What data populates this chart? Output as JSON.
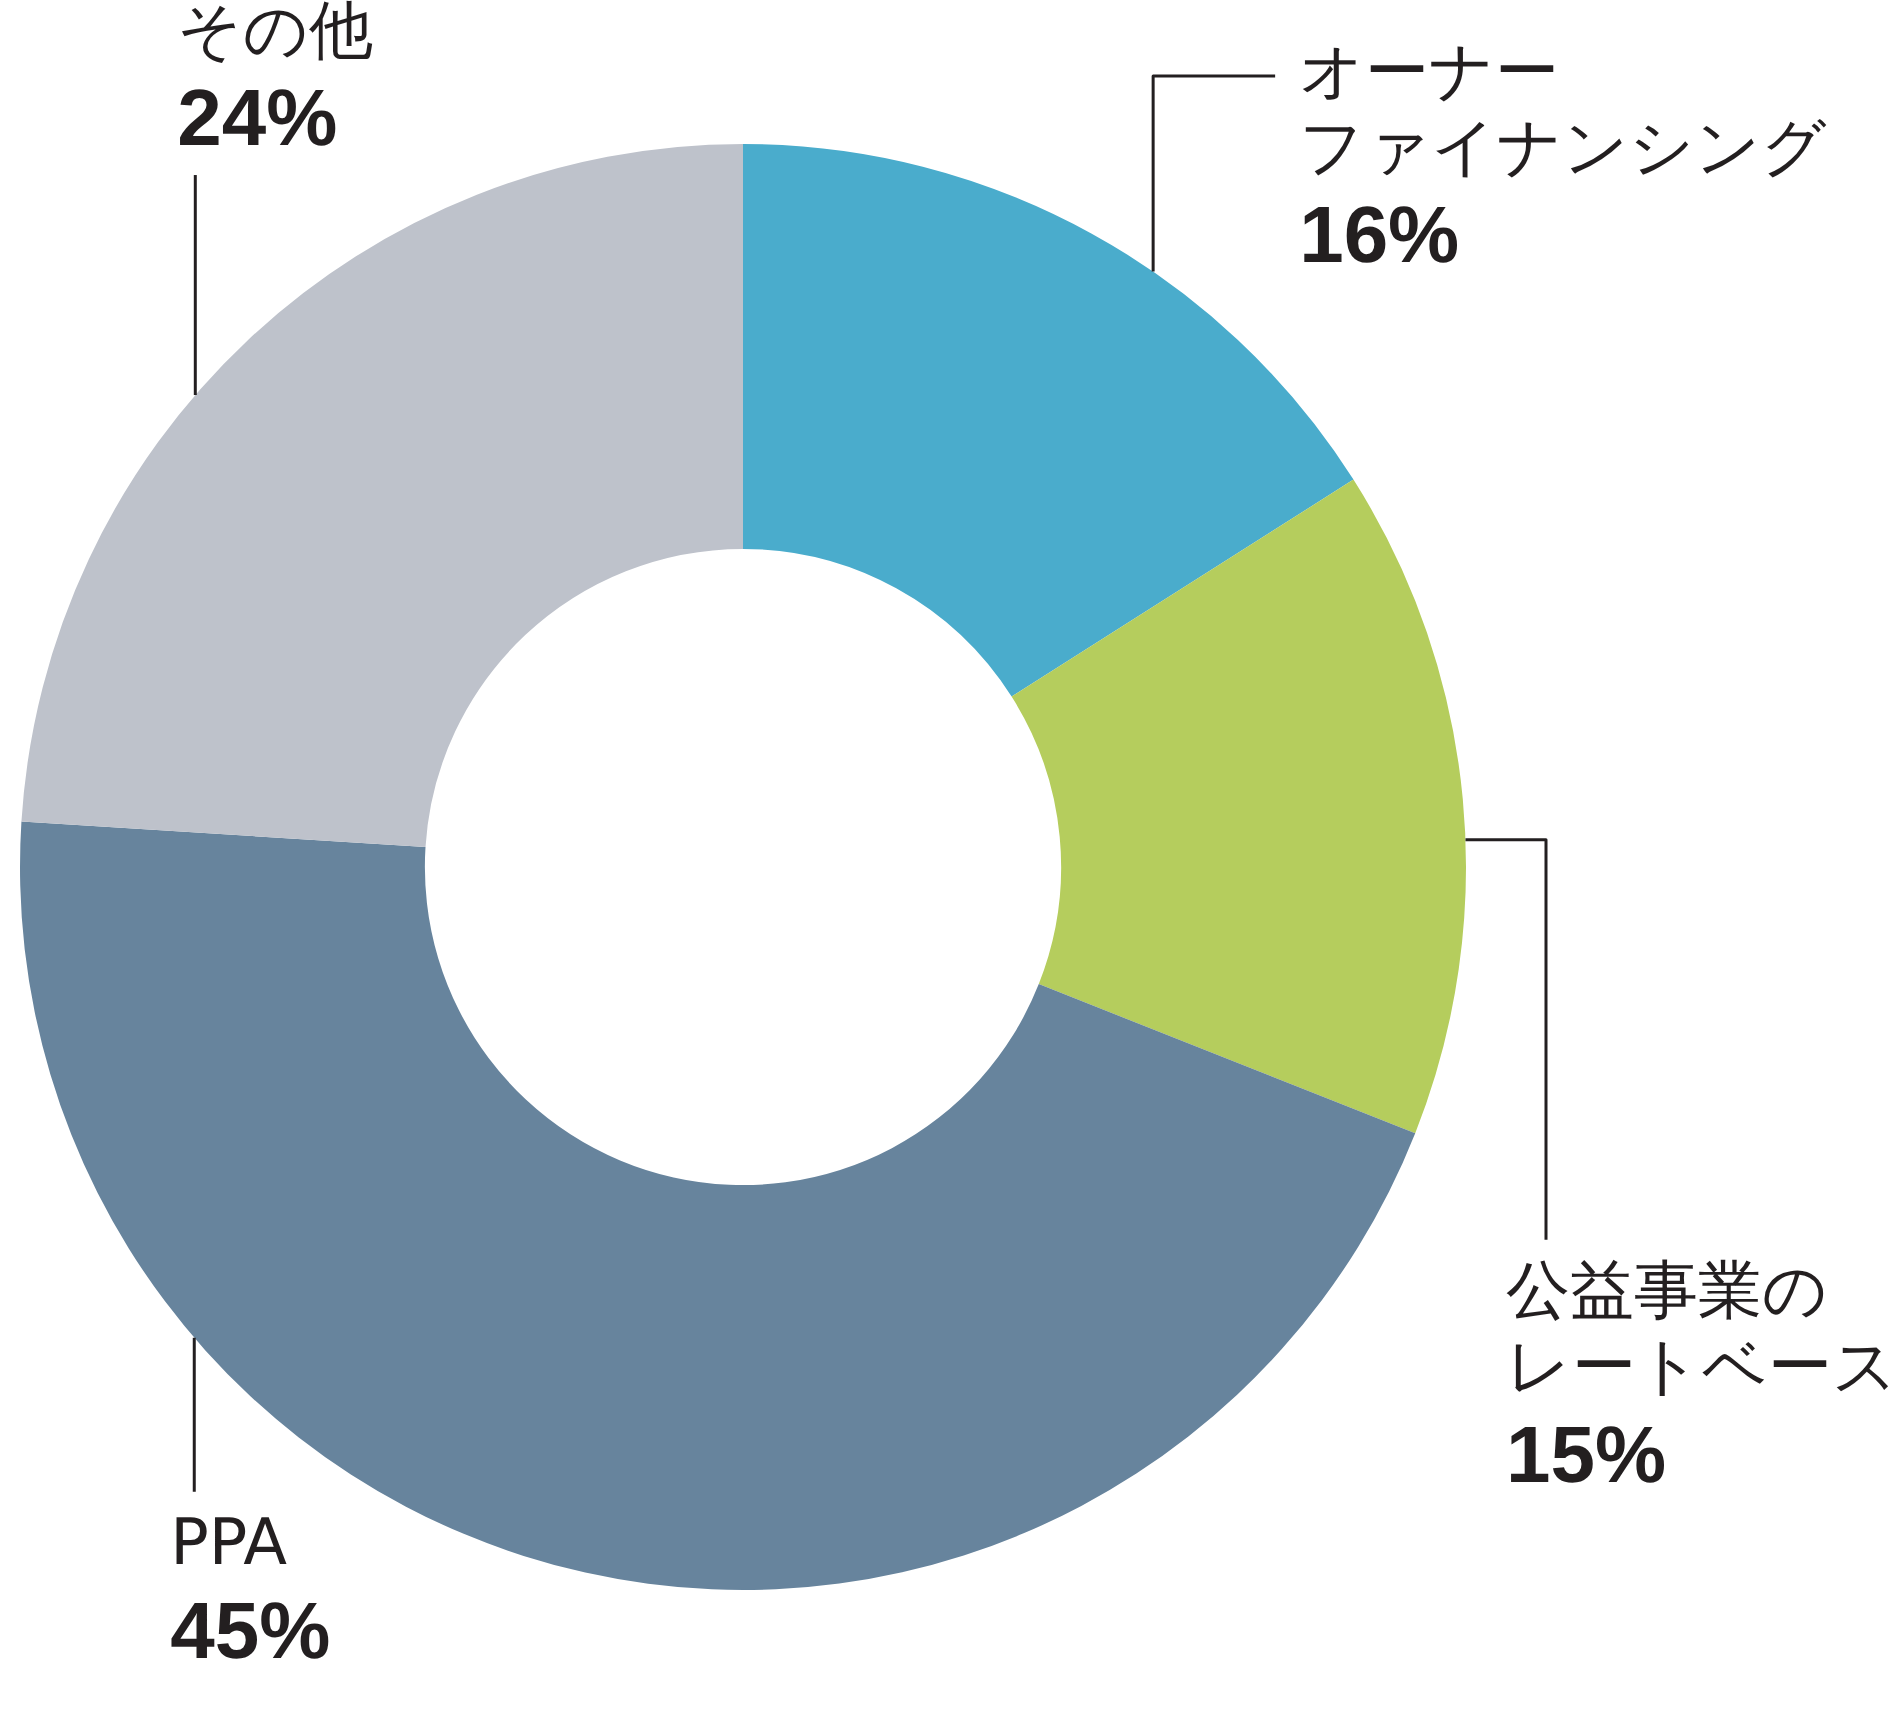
{
  "chart_data": {
    "type": "donut",
    "categories": [
      "オーナーファイナンシング",
      "公益事業のレートベース",
      "PPA",
      "その他"
    ],
    "values": [
      16,
      15,
      45,
      24
    ],
    "colors": [
      "#4aaccc",
      "#b5cd5d",
      "#67849d",
      "#bec2cb"
    ],
    "value_labels": [
      "16%",
      "15%",
      "45%",
      "24%"
    ]
  }
}
